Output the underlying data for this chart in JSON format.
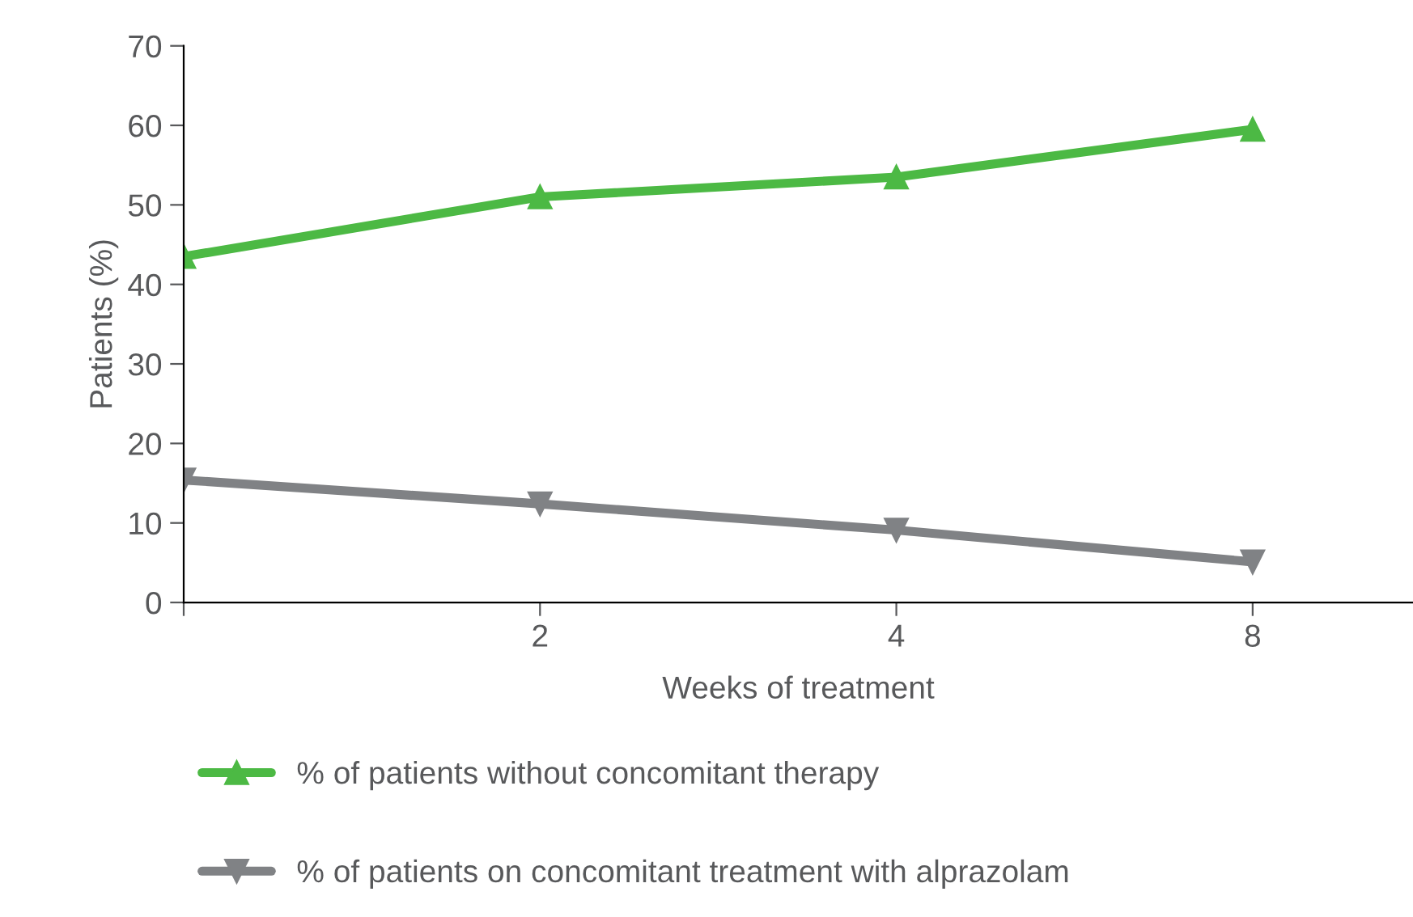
{
  "chart_data": {
    "type": "line",
    "xlabel": "Weeks of treatment",
    "ylabel": "Patients (%)",
    "categories": [
      null,
      "2",
      "4",
      "8"
    ],
    "series": [
      {
        "name": "% of patients without concomitant therapy",
        "color": "#4cb944",
        "marker": "triangle",
        "values": [
          43.5,
          51,
          53.5,
          59.5
        ]
      },
      {
        "name": "% of patients on concomitant treatment with alprazolam",
        "color": "#808285",
        "marker": "triangle",
        "values": [
          15.4,
          12.4,
          9.1,
          5.1
        ]
      }
    ],
    "ylim": [
      0,
      70
    ],
    "yticks": [
      0,
      10,
      20,
      30,
      40,
      50,
      60,
      70
    ],
    "grid": false,
    "legend": "bottom"
  }
}
